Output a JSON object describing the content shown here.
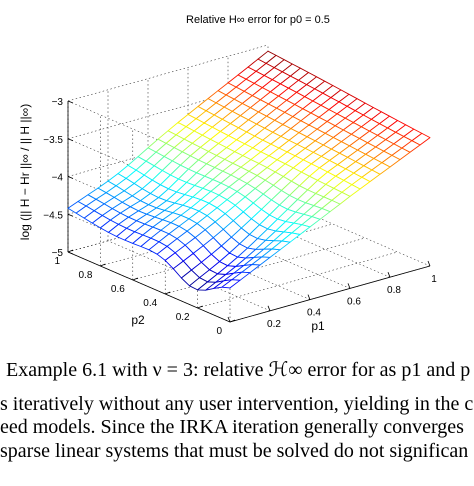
{
  "chart_data": {
    "type": "surface",
    "title": "Relative H∞ error for p0 = 0.5",
    "zlabel": "log (|| H − Hr ||∞ / || H ||∞)",
    "xlabel": "p1",
    "ylabel": "p2",
    "x_range": [
      0,
      1
    ],
    "y_range": [
      0,
      1
    ],
    "z_range": [
      -5,
      -3
    ],
    "z_ticks": [
      "−3",
      "−3.5",
      "−4",
      "−4.5",
      "−5"
    ],
    "x_ticks": [
      "0",
      "0.2",
      "0.4",
      "0.6",
      "0.8",
      "1"
    ],
    "y_ticks": [
      "0",
      "0.2",
      "0.4",
      "0.6",
      "0.8",
      "1"
    ],
    "grid": true,
    "colormap": "jet",
    "corner_values": {
      "p1_0_p2_1": -4.45,
      "p1_0_p2_0": -4.5,
      "p1_1_p2_1": -3.08,
      "p1_1_p2_0": -3.3
    }
  },
  "caption": "Example 6.1 with ν = 3: relative ℋ∞ error for as p1 and p",
  "body_text": [
    "s iteratively without any user intervention, yielding in the c",
    "eed models.  Since the IRKA iteration generally converges",
    " sparse linear systems that must be solved do not significan"
  ]
}
